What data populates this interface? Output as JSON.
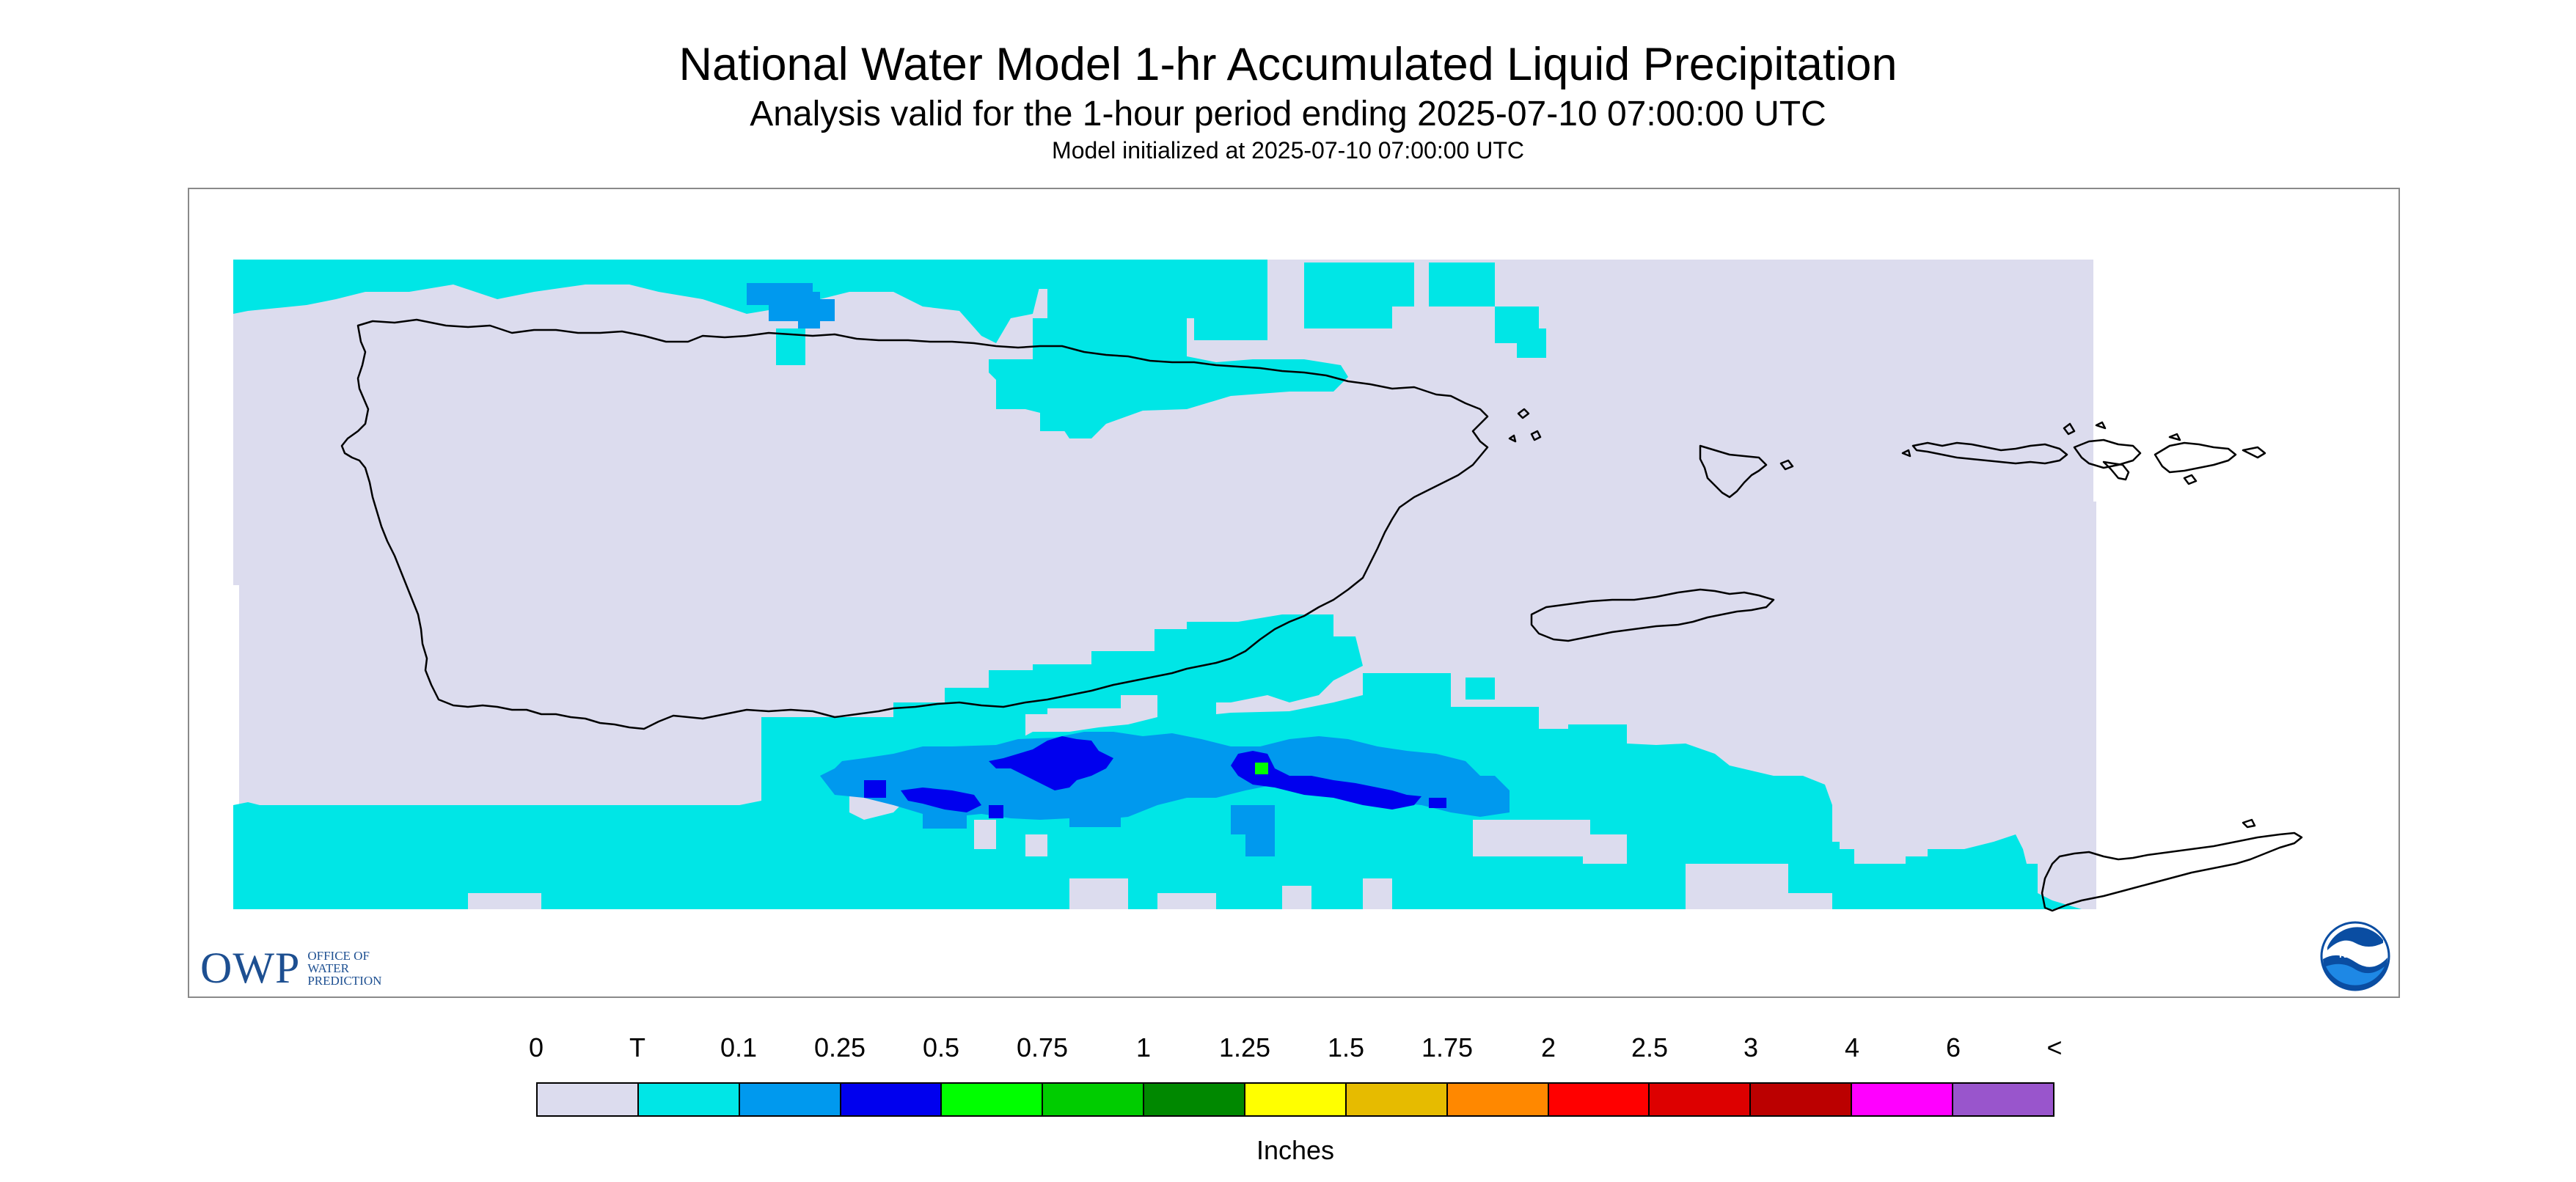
{
  "titles": {
    "main": "National Water Model 1-hr Accumulated Liquid Precipitation",
    "subtitle": "Analysis valid for the 1-hour period ending 2025-07-10 07:00:00 UTC",
    "initialized": "Model initialized at 2025-07-10 07:00:00 UTC"
  },
  "map": {
    "region": "Puerto Rico and U.S. Virgin Islands",
    "background_color": "#dcdcee",
    "outline_color": "#000000"
  },
  "logos": {
    "owp": {
      "letters": "OWP",
      "lines": [
        "Office of",
        "Water",
        "Prediction"
      ],
      "color": "#1d4f91"
    },
    "noaa": {
      "text": "NOAA",
      "color": "#0a4da2",
      "icon": "noaa-seal-icon"
    }
  },
  "legend": {
    "unit": "Inches",
    "tick_labels": [
      "0",
      "T",
      "0.1",
      "0.25",
      "0.5",
      "0.75",
      "1",
      "1.25",
      "1.5",
      "1.75",
      "2",
      "2.5",
      "3",
      "4",
      "6",
      "<"
    ],
    "colors": [
      "#dcdcee",
      "#00e6e6",
      "#0099ee",
      "#0000ee",
      "#00ff00",
      "#00cc00",
      "#008800",
      "#ffff00",
      "#e6bb00",
      "#ff8800",
      "#ff0000",
      "#dd0000",
      "#bb0000",
      "#ff00ff",
      "#9955cc"
    ]
  }
}
